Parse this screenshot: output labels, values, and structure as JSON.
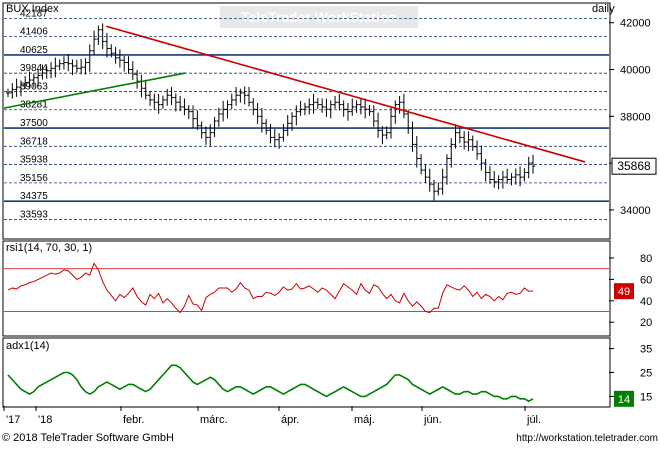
{
  "header": {
    "title": "BUX Index",
    "period": "daily",
    "watermark": "TeleTrader WorkStation"
  },
  "footer": {
    "copyright": "© 2018 TeleTrader Software GmbH",
    "url": "http://workstation.teletrader.com"
  },
  "colors": {
    "price": "#000000",
    "resistance_trendline": "#cc0000",
    "support_trendline": "#008000",
    "rsi_line": "#cc0000",
    "adx_line": "#008000",
    "gridline": "#1a3a7a",
    "last_price_box": "#000000",
    "rsi_badge": "#cc0000",
    "adx_badge": "#008000"
  },
  "chart_data": [
    {
      "type": "ohlc",
      "name": "price-panel",
      "title": "BUX Index",
      "x_labels": [
        "'17",
        "'18",
        "febr.",
        "márc.",
        "ápr.",
        "máj.",
        "jún.",
        "júl."
      ],
      "y_right_ticks": [
        34000,
        36000,
        38000,
        40000,
        42000
      ],
      "y_right_range": [
        32800,
        42800
      ],
      "levels": [
        42187,
        41406,
        40625,
        39844,
        39063,
        38281,
        37500,
        36718,
        35938,
        35156,
        34375,
        33593
      ],
      "level_labels": [
        "42187",
        "41406",
        "40625",
        "39844",
        "39063",
        "38281",
        "37500",
        "36718",
        "35938",
        "35156",
        "34375",
        "33593"
      ],
      "heavy_levels": [
        40625,
        37500,
        34375
      ],
      "last_value": "35868",
      "close_series": [
        39000,
        39150,
        39250,
        39350,
        39450,
        39550,
        39650,
        39750,
        39850,
        39950,
        40050,
        40150,
        40250,
        40300,
        40250,
        40150,
        40050,
        40100,
        40300,
        40800,
        41300,
        41700,
        41200,
        40900,
        40700,
        40500,
        40400,
        40300,
        40000,
        39800,
        39500,
        39200,
        38900,
        38700,
        38600,
        38500,
        38700,
        38900,
        38800,
        38600,
        38400,
        38300,
        38200,
        37900,
        37600,
        37300,
        37100,
        37300,
        37800,
        38100,
        38300,
        38500,
        38700,
        38900,
        39000,
        38900,
        38600,
        38300,
        38000,
        37700,
        37400,
        37100,
        37000,
        37100,
        37400,
        37700,
        38000,
        38200,
        38300,
        38400,
        38500,
        38600,
        38500,
        38400,
        38300,
        38500,
        38600,
        38500,
        38300,
        38200,
        38400,
        38500,
        38400,
        38300,
        38200,
        37800,
        37400,
        37200,
        37300,
        38000,
        38500,
        38600,
        38100,
        37500,
        36800,
        36200,
        35700,
        35400,
        35100,
        34800,
        34900,
        35400,
        36200,
        36800,
        37300,
        37100,
        36900,
        37000,
        36700,
        36400,
        36000,
        35600,
        35300,
        35200,
        35300,
        35400,
        35300,
        35400,
        35500,
        35400,
        35600,
        36000,
        35868
      ],
      "resistance_trendline": [
        [
          0.176,
          41850
        ],
        [
          1.0,
          36050
        ]
      ],
      "support_trendline": [
        [
          0.0,
          38350
        ],
        [
          0.312,
          39850
        ]
      ]
    },
    {
      "type": "line",
      "name": "rsi-panel",
      "title": "rsi1(14, 70, 30, 1)",
      "y_right_ticks": [
        20,
        40,
        60,
        80
      ],
      "y_range": [
        8,
        95
      ],
      "bands": [
        70,
        30
      ],
      "last_value": "49",
      "values": [
        50,
        52,
        51,
        54,
        55,
        57,
        58,
        60,
        62,
        64,
        66,
        65,
        66,
        69,
        68,
        64,
        60,
        62,
        66,
        64,
        75,
        69,
        58,
        50,
        45,
        40,
        46,
        43,
        47,
        52,
        44,
        39,
        36,
        46,
        42,
        47,
        38,
        42,
        38,
        33,
        29,
        35,
        45,
        37,
        36,
        31,
        43,
        46,
        48,
        52,
        52,
        52,
        48,
        51,
        57,
        52,
        50,
        42,
        44,
        44,
        48,
        47,
        45,
        48,
        53,
        50,
        51,
        56,
        51,
        52,
        54,
        51,
        48,
        52,
        50,
        46,
        42,
        49,
        56,
        53,
        50,
        46,
        56,
        50,
        47,
        55,
        53,
        47,
        42,
        46,
        40,
        38,
        47,
        40,
        35,
        39,
        35,
        30,
        29,
        33,
        33,
        47,
        55,
        53,
        51,
        50,
        54,
        50,
        44,
        48,
        42,
        46,
        44,
        40,
        44,
        41,
        47,
        48,
        46,
        47,
        52,
        49,
        49
      ]
    },
    {
      "type": "line",
      "name": "adx-panel",
      "title": "adx1(14)",
      "y_right_ticks": [
        15,
        25,
        35
      ],
      "y_range": [
        11,
        39
      ],
      "last_value": "14",
      "values": [
        24,
        22,
        20,
        18,
        17,
        16,
        17,
        19,
        20,
        21,
        22,
        23,
        24,
        25,
        25,
        24,
        22,
        19,
        17,
        16,
        17,
        19,
        20,
        21,
        20,
        19,
        18,
        19,
        20,
        20,
        19,
        18,
        17,
        18,
        20,
        22,
        24,
        26,
        28,
        28,
        27,
        25,
        23,
        21,
        20,
        21,
        22,
        23,
        22,
        20,
        18,
        17,
        18,
        19,
        19,
        18,
        17,
        16,
        17,
        18,
        19,
        19,
        18,
        17,
        16,
        17,
        18,
        19,
        20,
        20,
        19,
        18,
        17,
        16,
        15,
        16,
        17,
        18,
        19,
        18,
        17,
        16,
        15,
        15,
        16,
        17,
        18,
        19,
        20,
        22,
        24,
        24,
        23,
        22,
        20,
        19,
        18,
        17,
        16,
        17,
        18,
        19,
        18,
        17,
        16,
        16,
        17,
        17,
        16,
        16,
        17,
        17,
        16,
        15,
        15,
        14,
        14,
        15,
        15,
        14,
        14,
        13,
        14
      ]
    }
  ]
}
